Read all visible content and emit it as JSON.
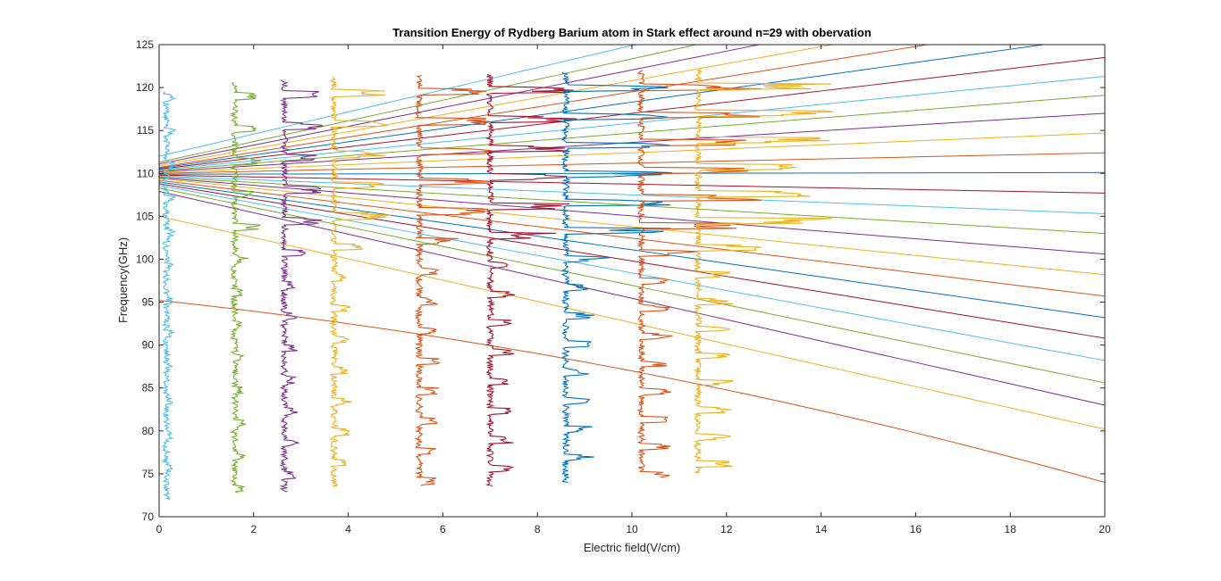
{
  "chart_data": {
    "type": "line",
    "title": "Transition Energy of Rydberg Barium atom in Stark effect around n=29 with obervation",
    "xlabel": "Electric field(V/cm)",
    "ylabel": "Frequency(GHz)",
    "xlim": [
      0,
      20
    ],
    "ylim": [
      70,
      125
    ],
    "xticks": [
      0,
      2,
      4,
      6,
      8,
      10,
      12,
      14,
      16,
      18,
      20
    ],
    "yticks": [
      70,
      75,
      80,
      85,
      90,
      95,
      100,
      105,
      110,
      115,
      120,
      125
    ],
    "grid": false,
    "legend": "none",
    "palette": [
      "#0072BD",
      "#D95319",
      "#EDB120",
      "#7E2F8E",
      "#77AC30",
      "#4DBEEE",
      "#A2142F"
    ],
    "theory_lines": {
      "x": [
        0,
        20
      ],
      "series": [
        {
          "y": [
            95.2,
            74.0
          ],
          "curvature": "quadratic"
        },
        {
          "y": [
            105.0,
            80.2
          ]
        },
        {
          "y": [
            107.9,
            83.0
          ]
        },
        {
          "y": [
            108.3,
            85.6
          ]
        },
        {
          "y": [
            108.6,
            88.2
          ]
        },
        {
          "y": [
            108.8,
            90.8
          ]
        },
        {
          "y": [
            109.0,
            93.2
          ]
        },
        {
          "y": [
            109.2,
            95.7
          ]
        },
        {
          "y": [
            109.4,
            98.2
          ]
        },
        {
          "y": [
            109.5,
            100.6
          ]
        },
        {
          "y": [
            109.6,
            103.0
          ]
        },
        {
          "y": [
            109.7,
            105.3
          ]
        },
        {
          "y": [
            109.8,
            107.7
          ]
        },
        {
          "y": [
            109.9,
            110.1
          ]
        },
        {
          "y": [
            110.0,
            112.4
          ]
        },
        {
          "y": [
            110.1,
            114.7
          ]
        },
        {
          "y": [
            110.2,
            117.0
          ]
        },
        {
          "y": [
            110.3,
            119.1
          ]
        },
        {
          "y": [
            110.4,
            121.3
          ]
        },
        {
          "y": [
            110.5,
            123.5
          ]
        },
        {
          "y": [
            110.6,
            126.0
          ]
        },
        {
          "y": [
            110.7,
            128.3
          ]
        },
        {
          "y": [
            110.9,
            130.7
          ]
        },
        {
          "y": [
            111.1,
            133.0
          ]
        },
        {
          "y": [
            111.3,
            135.4
          ]
        },
        {
          "y": [
            112.0,
            137.8
          ]
        }
      ]
    },
    "observation_traces": [
      {
        "field": 0.15,
        "freq_range": [
          72.0,
          119.5
        ],
        "color": "#4DBEEE"
      },
      {
        "field": 1.6,
        "freq_range": [
          72.8,
          120.6
        ],
        "color": "#77AC30"
      },
      {
        "field": 2.65,
        "freq_range": [
          72.9,
          120.9
        ],
        "color": "#7E2F8E"
      },
      {
        "field": 3.7,
        "freq_range": [
          73.5,
          121.3
        ],
        "color": "#EDB120"
      },
      {
        "field": 5.5,
        "freq_range": [
          73.6,
          121.4
        ],
        "color": "#D95319"
      },
      {
        "field": 7.0,
        "freq_range": [
          73.6,
          121.5
        ],
        "color": "#A2142F"
      },
      {
        "field": 8.6,
        "freq_range": [
          74.0,
          121.8
        ],
        "color": "#0072BD"
      },
      {
        "field": 10.2,
        "freq_range": [
          74.6,
          122.0
        ],
        "color": "#D95319"
      },
      {
        "field": 11.4,
        "freq_range": [
          75.1,
          122.1
        ],
        "color": "#EDB120"
      }
    ]
  }
}
